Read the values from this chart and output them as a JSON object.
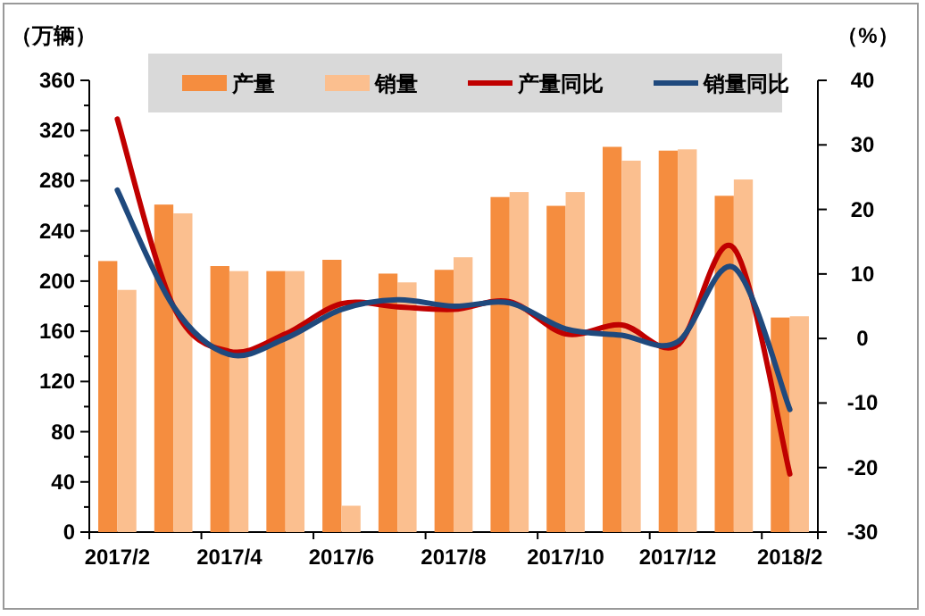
{
  "chart_data": {
    "type": "bar",
    "ylabel": "（万辆）",
    "y2label": "（%）",
    "categories": [
      "2017/2",
      null,
      "2017/4",
      null,
      "2017/6",
      null,
      "2017/8",
      null,
      "2017/10",
      null,
      "2017/12",
      null,
      "2018/2"
    ],
    "series": [
      {
        "name": "产量",
        "color": "#f58d3f",
        "values": [
          216,
          261,
          212,
          208,
          217,
          206,
          209,
          267,
          260,
          307,
          304,
          268,
          171
        ]
      },
      {
        "name": "销量",
        "color": "#fbbf8f",
        "values": [
          193,
          254,
          208,
          208,
          21,
          199,
          219,
          271,
          271,
          296,
          305,
          281,
          172
        ]
      },
      {
        "name": "产量同比",
        "type": "line",
        "axis": "y2",
        "color": "#c00000",
        "values": [
          34,
          5,
          -2,
          0.7,
          5.4,
          4.9,
          4.5,
          5.7,
          0.7,
          2.1,
          -1,
          14,
          -21
        ]
      },
      {
        "name": "销量同比",
        "type": "line",
        "axis": "y2",
        "color": "#1f497d",
        "values": [
          23,
          5,
          -2.5,
          0,
          4.5,
          6,
          5,
          5.5,
          1.5,
          0.5,
          -0.5,
          11,
          -11
        ]
      }
    ],
    "ylim": [
      0,
      360
    ],
    "yticks": [
      0,
      40,
      80,
      120,
      160,
      200,
      240,
      280,
      320,
      360
    ],
    "y2lim": [
      -30,
      40
    ],
    "y2ticks": [
      -30,
      -20,
      -10,
      0,
      10,
      20,
      30,
      40
    ],
    "grid": false,
    "legend": "top",
    "marker": "none",
    "line_style": "solid"
  }
}
